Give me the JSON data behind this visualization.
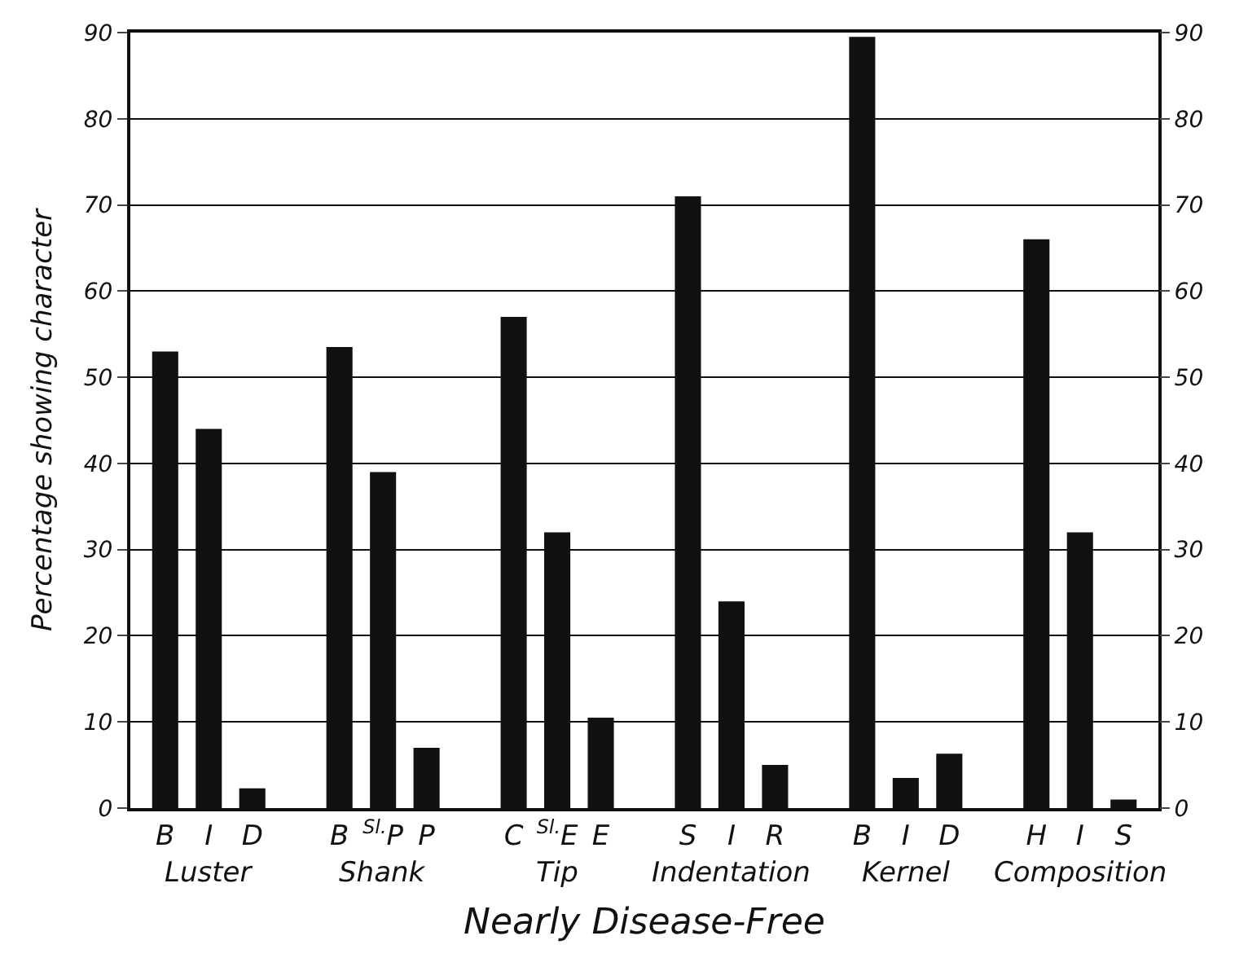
{
  "chart_data": {
    "type": "bar",
    "xlabel": "Nearly Disease-Free",
    "ylabel": "Percentage showing character",
    "categories": [
      "B",
      "I",
      "D",
      "B",
      "$^{Sl.}$P",
      "P",
      "C",
      "$^{Sl.}$E",
      "E",
      "S",
      "I",
      "R",
      "B",
      "I",
      "D",
      "H",
      "I",
      "S"
    ],
    "values": [
      53,
      44,
      2.3,
      53.5,
      39,
      7,
      57,
      32,
      10.5,
      71,
      24,
      5,
      89.5,
      3.5,
      6.3,
      66,
      32,
      1
    ],
    "color": "#111111",
    "annotations": [
      "Luster",
      "Shank",
      "Tip",
      "Indentation",
      "Kernel",
      "Composition"
    ],
    "ylim": [
      0,
      90
    ],
    "yticks": [
      0,
      10,
      20,
      30,
      40,
      50,
      60,
      70,
      80,
      90
    ],
    "y2lim": [
      0,
      90
    ],
    "y2ticks": [
      0,
      10,
      20,
      30,
      40,
      50,
      60,
      70,
      80,
      90
    ],
    "grid": "y"
  }
}
